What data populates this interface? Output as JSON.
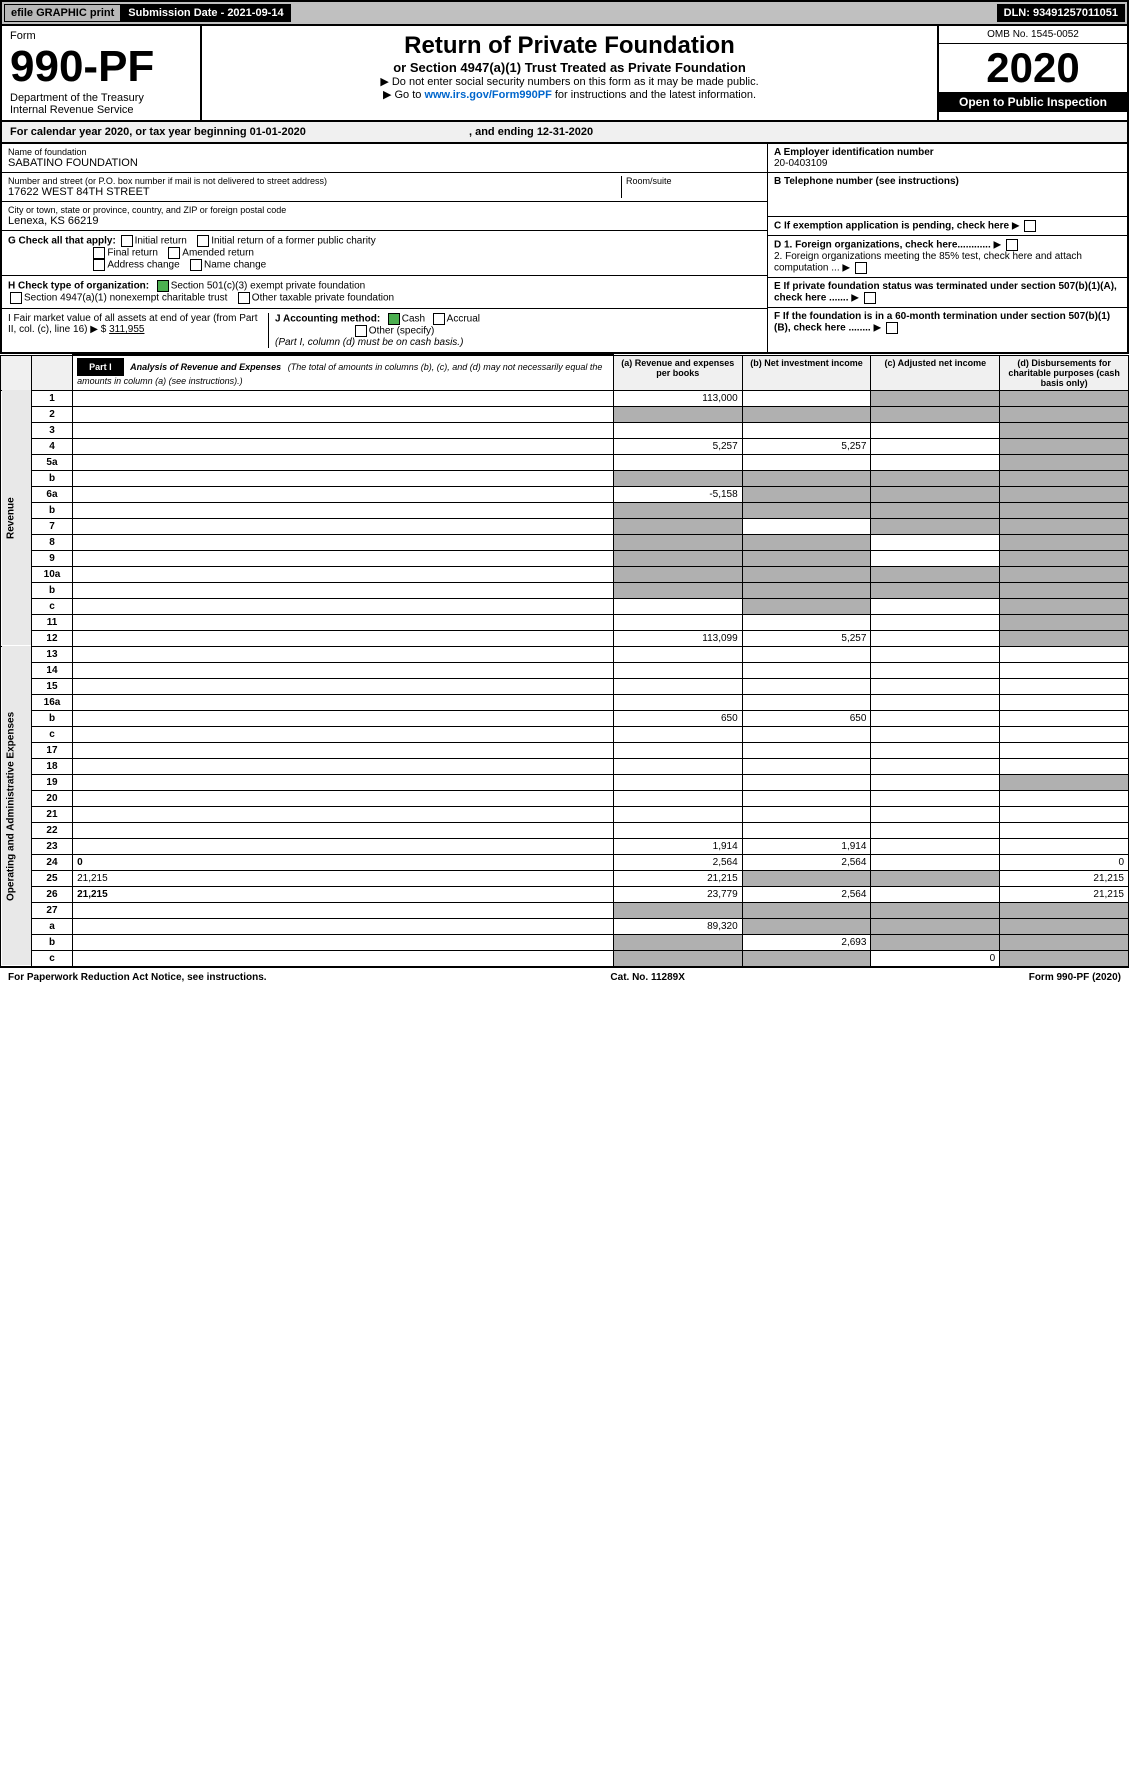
{
  "topbar": {
    "efile": "efile GRAPHIC print",
    "subdate": "Submission Date - 2021-09-14",
    "dln": "DLN: 93491257011051"
  },
  "header": {
    "form": "Form",
    "formnum": "990-PF",
    "dept": "Department of the Treasury",
    "irs": "Internal Revenue Service",
    "title": "Return of Private Foundation",
    "subtitle": "or Section 4947(a)(1) Trust Treated as Private Foundation",
    "instr1": "▶ Do not enter social security numbers on this form as it may be made public.",
    "instr2": "▶ Go to",
    "link": "www.irs.gov/Form990PF",
    "instr3": "for instructions and the latest information.",
    "omb": "OMB No. 1545-0052",
    "year": "2020",
    "openpub": "Open to Public Inspection"
  },
  "calyear": "For calendar year 2020, or tax year beginning 01-01-2020",
  "calend": ", and ending 12-31-2020",
  "info": {
    "name_lbl": "Name of foundation",
    "name": "SABATINO FOUNDATION",
    "addr_lbl": "Number and street (or P.O. box number if mail is not delivered to street address)",
    "addr": "17622 WEST 84TH STREET",
    "room_lbl": "Room/suite",
    "city_lbl": "City or town, state or province, country, and ZIP or foreign postal code",
    "city": "Lenexa, KS  66219",
    "ein_lbl": "A Employer identification number",
    "ein": "20-0403109",
    "tel_lbl": "B Telephone number (see instructions)",
    "c_lbl": "C If exemption application is pending, check here",
    "d1": "D 1. Foreign organizations, check here............",
    "d2": "2. Foreign organizations meeting the 85% test, check here and attach computation ...",
    "e_lbl": "E  If private foundation status was terminated under section 507(b)(1)(A), check here .......",
    "f_lbl": "F  If the foundation is in a 60-month termination under section 507(b)(1)(B), check here ........"
  },
  "checkG": {
    "label": "G Check all that apply:",
    "opts": [
      "Initial return",
      "Initial return of a former public charity",
      "Final return",
      "Amended return",
      "Address change",
      "Name change"
    ]
  },
  "checkH": {
    "label": "H Check type of organization:",
    "opt1": "Section 501(c)(3) exempt private foundation",
    "opt2": "Section 4947(a)(1) nonexempt charitable trust",
    "opt3": "Other taxable private foundation"
  },
  "lineI": {
    "label": "I Fair market value of all assets at end of year (from Part II, col. (c), line 16) ▶ $",
    "val": "311,955"
  },
  "lineJ": {
    "label": "J Accounting method:",
    "cash": "Cash",
    "accrual": "Accrual",
    "other": "Other (specify)",
    "note": "(Part I, column (d) must be on cash basis.)"
  },
  "part1": {
    "tag": "Part I",
    "title": "Analysis of Revenue and Expenses",
    "subtitle": "(The total of amounts in columns (b), (c), and (d) may not necessarily equal the amounts in column (a) (see instructions).)",
    "cols": [
      "(a)  Revenue and expenses per books",
      "(b)  Net investment income",
      "(c)  Adjusted net income",
      "(d)  Disbursements for charitable purposes (cash basis only)"
    ]
  },
  "revenue_label": "Revenue",
  "expense_label": "Operating and Administrative Expenses",
  "rows": [
    {
      "n": "1",
      "d": "",
      "a": "113,000",
      "b": "",
      "c": "",
      "shade": [
        "c",
        "d"
      ]
    },
    {
      "n": "2",
      "d": "",
      "a": "",
      "b": "",
      "c": "",
      "shade": [
        "a",
        "b",
        "c",
        "d"
      ]
    },
    {
      "n": "3",
      "d": "",
      "a": "",
      "b": "",
      "c": "",
      "shade": [
        "d"
      ]
    },
    {
      "n": "4",
      "d": "",
      "a": "5,257",
      "b": "5,257",
      "c": "",
      "shade": [
        "d"
      ]
    },
    {
      "n": "5a",
      "d": "",
      "a": "",
      "b": "",
      "c": "",
      "shade": [
        "d"
      ]
    },
    {
      "n": "b",
      "d": "",
      "a": "",
      "b": "",
      "c": "",
      "shade": [
        "a",
        "b",
        "c",
        "d"
      ]
    },
    {
      "n": "6a",
      "d": "",
      "a": "-5,158",
      "b": "",
      "c": "",
      "shade": [
        "b",
        "c",
        "d"
      ]
    },
    {
      "n": "b",
      "d": "",
      "a": "",
      "b": "",
      "c": "",
      "shade": [
        "a",
        "b",
        "c",
        "d"
      ]
    },
    {
      "n": "7",
      "d": "",
      "a": "",
      "b": "",
      "c": "",
      "shade": [
        "a",
        "c",
        "d"
      ]
    },
    {
      "n": "8",
      "d": "",
      "a": "",
      "b": "",
      "c": "",
      "shade": [
        "a",
        "b",
        "d"
      ]
    },
    {
      "n": "9",
      "d": "",
      "a": "",
      "b": "",
      "c": "",
      "shade": [
        "a",
        "b",
        "d"
      ]
    },
    {
      "n": "10a",
      "d": "",
      "a": "",
      "b": "",
      "c": "",
      "shade": [
        "a",
        "b",
        "c",
        "d"
      ]
    },
    {
      "n": "b",
      "d": "",
      "a": "",
      "b": "",
      "c": "",
      "shade": [
        "a",
        "b",
        "c",
        "d"
      ]
    },
    {
      "n": "c",
      "d": "",
      "a": "",
      "b": "",
      "c": "",
      "shade": [
        "b",
        "d"
      ]
    },
    {
      "n": "11",
      "d": "",
      "a": "",
      "b": "",
      "c": "",
      "shade": [
        "d"
      ]
    },
    {
      "n": "12",
      "d": "",
      "a": "113,099",
      "b": "5,257",
      "c": "",
      "shade": [
        "d"
      ],
      "bold": true
    }
  ],
  "exp_rows": [
    {
      "n": "13",
      "d": "",
      "a": "",
      "b": "",
      "c": ""
    },
    {
      "n": "14",
      "d": "",
      "a": "",
      "b": "",
      "c": ""
    },
    {
      "n": "15",
      "d": "",
      "a": "",
      "b": "",
      "c": ""
    },
    {
      "n": "16a",
      "d": "",
      "a": "",
      "b": "",
      "c": ""
    },
    {
      "n": "b",
      "d": "",
      "a": "650",
      "b": "650",
      "c": ""
    },
    {
      "n": "c",
      "d": "",
      "a": "",
      "b": "",
      "c": ""
    },
    {
      "n": "17",
      "d": "",
      "a": "",
      "b": "",
      "c": ""
    },
    {
      "n": "18",
      "d": "",
      "a": "",
      "b": "",
      "c": ""
    },
    {
      "n": "19",
      "d": "",
      "a": "",
      "b": "",
      "c": "",
      "shade": [
        "d"
      ]
    },
    {
      "n": "20",
      "d": "",
      "a": "",
      "b": "",
      "c": ""
    },
    {
      "n": "21",
      "d": "",
      "a": "",
      "b": "",
      "c": ""
    },
    {
      "n": "22",
      "d": "",
      "a": "",
      "b": "",
      "c": ""
    },
    {
      "n": "23",
      "d": "",
      "a": "1,914",
      "b": "1,914",
      "c": ""
    },
    {
      "n": "24",
      "d": "0",
      "a": "2,564",
      "b": "2,564",
      "c": "",
      "bold": true
    },
    {
      "n": "25",
      "d": "21,215",
      "a": "21,215",
      "b": "",
      "c": "",
      "shade": [
        "b",
        "c"
      ]
    },
    {
      "n": "26",
      "d": "21,215",
      "a": "23,779",
      "b": "2,564",
      "c": "",
      "bold": true
    },
    {
      "n": "27",
      "d": "",
      "a": "",
      "b": "",
      "c": "",
      "shade": [
        "a",
        "b",
        "c",
        "d"
      ]
    },
    {
      "n": "a",
      "d": "",
      "a": "89,320",
      "b": "",
      "c": "",
      "shade": [
        "b",
        "c",
        "d"
      ],
      "bold": true
    },
    {
      "n": "b",
      "d": "",
      "a": "",
      "b": "2,693",
      "c": "",
      "shade": [
        "a",
        "c",
        "d"
      ],
      "bold": true
    },
    {
      "n": "c",
      "d": "",
      "a": "",
      "b": "",
      "c": "0",
      "shade": [
        "a",
        "b",
        "d"
      ],
      "bold": true
    }
  ],
  "footer": {
    "left": "For Paperwork Reduction Act Notice, see instructions.",
    "mid": "Cat. No. 11289X",
    "right": "Form 990-PF (2020)"
  }
}
